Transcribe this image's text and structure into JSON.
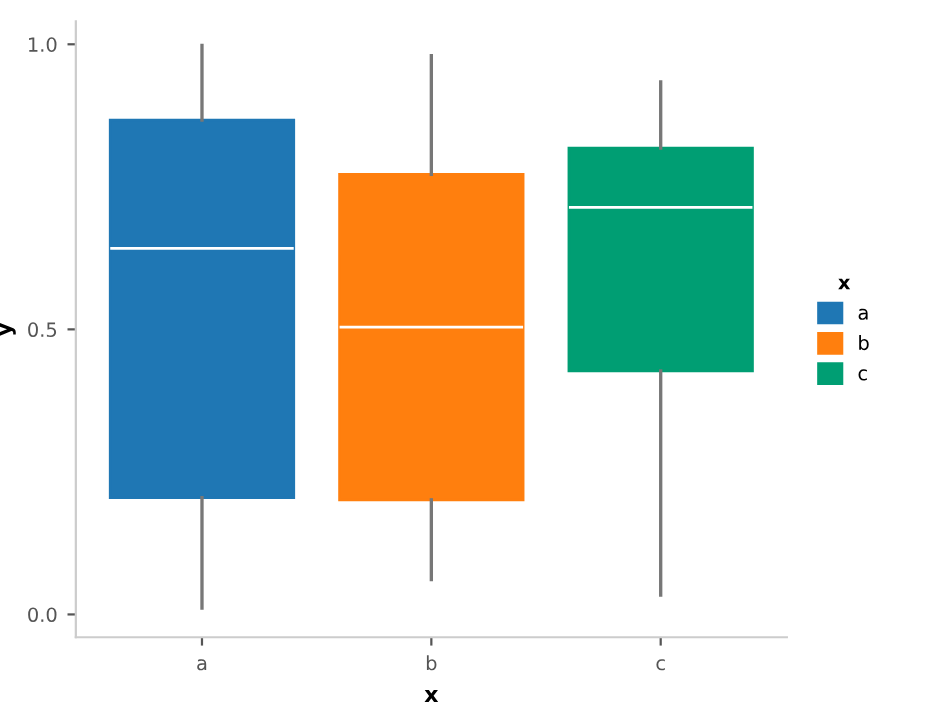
{
  "chart_data": {
    "type": "box",
    "xlabel": "x",
    "ylabel": "y",
    "legend_title": "x",
    "categories": [
      "a",
      "b",
      "c"
    ],
    "series": [
      {
        "name": "a",
        "color": "#1f77b4",
        "boxes": [
          {
            "low": 0.011,
            "q1": 0.205,
            "median": 0.642,
            "q3": 0.867,
            "high": 0.998
          },
          null,
          null
        ]
      },
      {
        "name": "b",
        "color": "#ff7f0e",
        "boxes": [
          null,
          {
            "low": 0.061,
            "q1": 0.201,
            "median": 0.504,
            "q3": 0.772,
            "high": 0.98
          },
          null
        ]
      },
      {
        "name": "c",
        "color": "#009e73",
        "boxes": [
          null,
          null,
          {
            "low": 0.034,
            "q1": 0.427,
            "median": 0.714,
            "q3": 0.818,
            "high": 0.934
          }
        ]
      }
    ],
    "ylim": [
      -0.04,
      1.04
    ],
    "yticks": [
      {
        "value": 0,
        "label": "0.0"
      },
      {
        "value": 0.5,
        "label": "0.5"
      },
      {
        "value": 1,
        "label": "1.0"
      }
    ],
    "grid": false,
    "legend": "right"
  }
}
